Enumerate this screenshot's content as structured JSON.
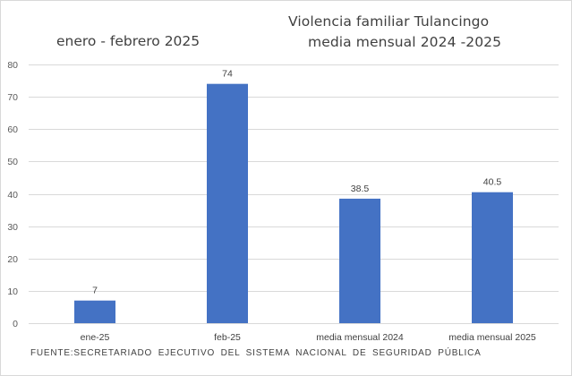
{
  "chart_data": {
    "type": "bar",
    "title": [
      "Violencia familiar Tulancingo",
      "media mensual 2024 -2025"
    ],
    "subtitle": "enero - febrero 2025",
    "categories": [
      "ene-25",
      "feb-25",
      "media mensual 2024",
      "media mensual 2025"
    ],
    "values": [
      7,
      74,
      38.5,
      40.5
    ],
    "data_labels": [
      "7",
      "74",
      "38.5",
      "40.5"
    ],
    "xlabel": "",
    "ylabel": "",
    "ylim": [
      0,
      80
    ],
    "yticks": [
      0,
      10,
      20,
      30,
      40,
      50,
      60,
      70,
      80
    ],
    "grid": true,
    "legend": "none",
    "bar_color": "#4472C4",
    "gridline_color": "#d9d9d9",
    "source": "FUENTE:SECRETARIADO EJECUTIVO DEL SISTEMA NACIONAL DE SEGURIDAD PÚBLICA"
  }
}
